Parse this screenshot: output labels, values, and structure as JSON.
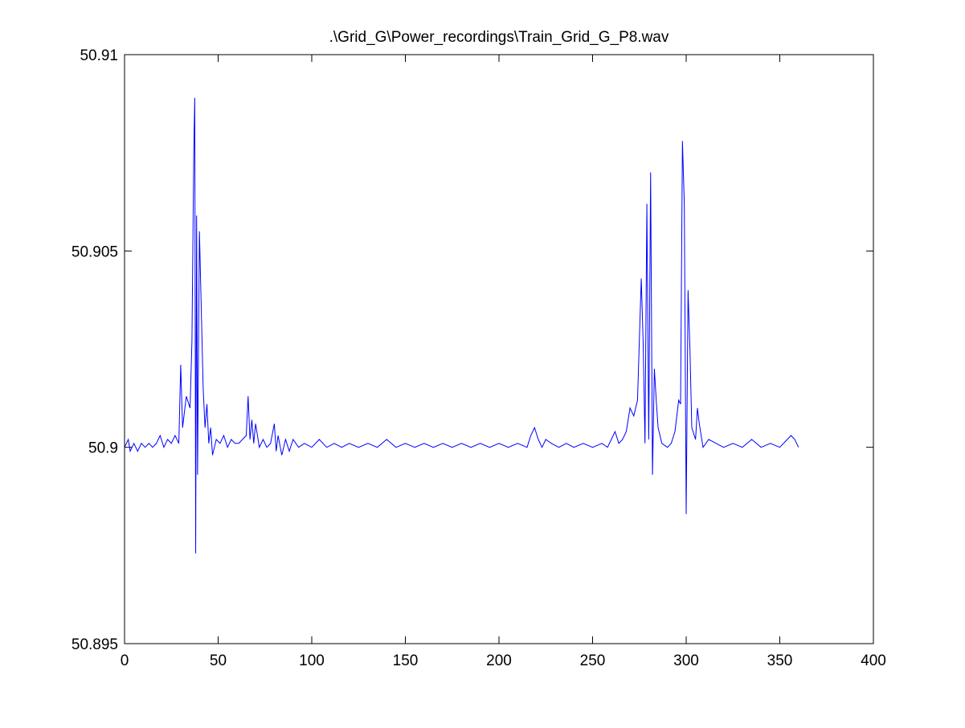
{
  "chart_data": {
    "type": "line",
    "title": ".\\Grid_G\\Power_recordings\\Train_Grid_G_P8.wav",
    "x": [
      0,
      2,
      3,
      5,
      7,
      9,
      11,
      13,
      15,
      17,
      19,
      21,
      23,
      25,
      27,
      29,
      30,
      31,
      33,
      35,
      36,
      37,
      37.5,
      38,
      38.5,
      39,
      40,
      41,
      42,
      43,
      44,
      45,
      46,
      47,
      49,
      51,
      53,
      55,
      57,
      59,
      61,
      63,
      65,
      66,
      67,
      68,
      69,
      70,
      72,
      74,
      76,
      78,
      80,
      81,
      82,
      84,
      86,
      88,
      90,
      93,
      96,
      100,
      104,
      108,
      112,
      116,
      120,
      125,
      130,
      135,
      140,
      145,
      150,
      155,
      160,
      165,
      170,
      175,
      180,
      185,
      190,
      195,
      200,
      205,
      210,
      215,
      217,
      219,
      221,
      223,
      225,
      228,
      232,
      236,
      240,
      245,
      250,
      255,
      258,
      260,
      262,
      264,
      266,
      268,
      270,
      272,
      274,
      276,
      277,
      278,
      279,
      280,
      281,
      282,
      283,
      284,
      285,
      287,
      290,
      292,
      294,
      296,
      297,
      298,
      299,
      300,
      301,
      302,
      303,
      305,
      306,
      307,
      309,
      312,
      316,
      320,
      325,
      330,
      335,
      340,
      345,
      350,
      354,
      356,
      358,
      360
    ],
    "series": [
      {
        "color": "#0000ff",
        "values": [
          50.9,
          50.9002,
          50.8999,
          50.9001,
          50.8999,
          50.9001,
          50.9,
          50.9001,
          50.9,
          50.9001,
          50.9003,
          50.9,
          50.9002,
          50.9001,
          50.9003,
          50.9001,
          50.9021,
          50.9005,
          50.9013,
          50.901,
          50.9027,
          50.9076,
          50.9089,
          50.8973,
          50.9059,
          50.8993,
          50.9055,
          50.9035,
          50.9015,
          50.9005,
          50.9011,
          50.9001,
          50.9005,
          50.8998,
          50.9002,
          50.9001,
          50.9003,
          50.9,
          50.9002,
          50.9001,
          50.9001,
          50.9002,
          50.9003,
          50.9013,
          50.9002,
          50.9007,
          50.9001,
          50.9006,
          50.9,
          50.9002,
          50.9,
          50.9001,
          50.9006,
          50.8999,
          50.9003,
          50.8998,
          50.9002,
          50.8999,
          50.9002,
          50.9,
          50.9001,
          50.9,
          50.9002,
          50.9,
          50.9001,
          50.9,
          50.9001,
          50.9,
          50.9001,
          50.9,
          50.9002,
          50.9,
          50.9001,
          50.9,
          50.9001,
          50.9,
          50.9001,
          50.9,
          50.9001,
          50.9,
          50.9001,
          50.9,
          50.9001,
          50.9,
          50.9001,
          50.9,
          50.9003,
          50.9005,
          50.9002,
          50.9,
          50.9002,
          50.9001,
          50.9,
          50.9001,
          50.9,
          50.9001,
          50.9,
          50.9001,
          50.9,
          50.9002,
          50.9004,
          50.9001,
          50.9002,
          50.9004,
          50.901,
          50.9008,
          50.9012,
          50.9043,
          50.9027,
          50.9001,
          50.9062,
          50.9002,
          50.907,
          50.8993,
          50.902,
          50.9012,
          50.9005,
          50.9001,
          50.9,
          50.9001,
          50.9004,
          50.9012,
          50.9011,
          50.9078,
          50.9062,
          50.8983,
          50.904,
          50.9025,
          50.9005,
          50.9002,
          50.901,
          50.9006,
          50.9,
          50.9002,
          50.9001,
          50.9,
          50.9001,
          50.9,
          50.9002,
          50.9,
          50.9001,
          50.9,
          50.9002,
          50.9003,
          50.9002,
          50.9
        ]
      }
    ],
    "xlim": [
      0,
      400
    ],
    "xticks": [
      0,
      50,
      100,
      150,
      200,
      250,
      300,
      350,
      400
    ],
    "ylim": [
      50.895,
      50.91
    ],
    "yticks": [
      50.895,
      50.9,
      50.905,
      50.91
    ]
  }
}
